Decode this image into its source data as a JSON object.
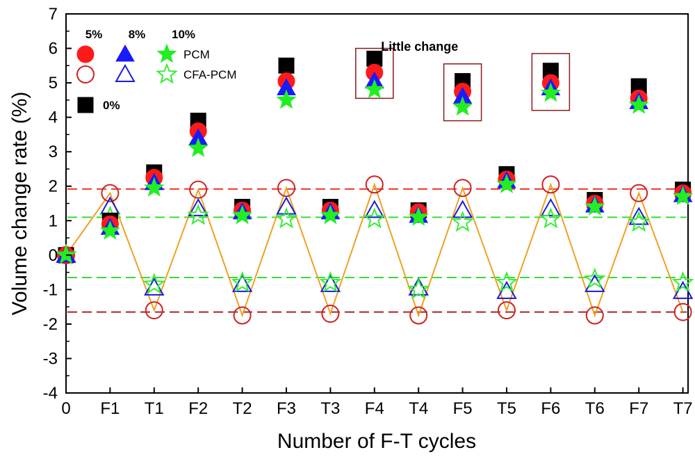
{
  "chart_data": {
    "type": "scatter",
    "title": "",
    "xlabel": "Number of F-T cycles",
    "ylabel": "Volume change rate (%)",
    "categories": [
      "0",
      "F1",
      "T1",
      "F2",
      "T2",
      "F3",
      "T3",
      "F4",
      "T4",
      "F5",
      "T5",
      "F6",
      "T6",
      "F7",
      "T7"
    ],
    "ylim": [
      -4,
      7
    ],
    "yticks": [
      -4,
      -3,
      -2,
      -1,
      0,
      1,
      2,
      3,
      4,
      5,
      6,
      7
    ],
    "grid": false,
    "series": [
      {
        "name": "0%",
        "group": "PCM",
        "marker": "square",
        "filled": true,
        "color": "#000000",
        "values": [
          0,
          1.0,
          2.4,
          3.9,
          1.4,
          5.5,
          1.4,
          5.7,
          1.3,
          5.05,
          2.35,
          5.35,
          1.6,
          4.9,
          1.9
        ]
      },
      {
        "name": "5%",
        "group": "PCM",
        "marker": "circle",
        "filled": true,
        "color": "#ff1a1a",
        "values": [
          0,
          0.9,
          2.25,
          3.6,
          1.3,
          5.05,
          1.3,
          5.3,
          1.25,
          4.75,
          2.2,
          5.0,
          1.5,
          4.55,
          1.8
        ]
      },
      {
        "name": "8%",
        "group": "PCM",
        "marker": "triangle",
        "filled": true,
        "color": "#1a1aff",
        "values": [
          0,
          0.8,
          2.1,
          3.4,
          1.25,
          4.85,
          1.25,
          5.05,
          1.15,
          4.6,
          2.15,
          4.85,
          1.45,
          4.45,
          1.75
        ]
      },
      {
        "name": "10%",
        "group": "PCM",
        "marker": "star",
        "filled": true,
        "color": "#22ee22",
        "values": [
          0,
          0.7,
          1.95,
          3.1,
          1.15,
          4.5,
          1.15,
          4.8,
          1.1,
          4.3,
          2.05,
          4.7,
          1.4,
          4.35,
          1.7
        ]
      },
      {
        "name": "5%",
        "group": "CFA-PCM",
        "marker": "circle",
        "filled": false,
        "color": "#cc2222",
        "values": [
          0,
          1.8,
          -1.6,
          1.9,
          -1.75,
          1.95,
          -1.7,
          2.05,
          -1.75,
          1.95,
          -1.6,
          2.05,
          -1.75,
          1.8,
          -1.65
        ]
      },
      {
        "name": "8%",
        "group": "CFA-PCM",
        "marker": "triangle",
        "filled": false,
        "color": "#1a1add",
        "values": [
          0,
          1.4,
          -0.95,
          1.35,
          -0.85,
          1.4,
          -0.85,
          1.3,
          -0.95,
          1.3,
          -1.05,
          1.35,
          -0.85,
          1.1,
          -1.05
        ]
      },
      {
        "name": "10%",
        "group": "CFA-PCM",
        "marker": "star",
        "filled": false,
        "color": "#33ee33",
        "values": [
          0,
          1.1,
          -0.85,
          1.15,
          -0.8,
          1.05,
          -0.8,
          1.05,
          -1.0,
          0.95,
          -0.8,
          1.05,
          -0.7,
          0.95,
          -0.8
        ]
      }
    ],
    "connector_line": {
      "series_index": 4,
      "color": "#f0a020"
    },
    "reference_lines": [
      {
        "y": 1.92,
        "color": "#ee3322"
      },
      {
        "y": 1.1,
        "color": "#33dd33"
      },
      {
        "y": -0.65,
        "color": "#33dd33"
      },
      {
        "y": -1.65,
        "color": "#aa2222"
      }
    ],
    "highlight_boxes": [
      {
        "category": "F4",
        "y_range": [
          4.55,
          6.0
        ]
      },
      {
        "category": "F5",
        "y_range": [
          3.9,
          5.55
        ]
      },
      {
        "category": "F6",
        "y_range": [
          4.2,
          5.85
        ]
      }
    ],
    "annotations": [
      {
        "text": "Little change",
        "x_category": "F4",
        "y": 6.05
      }
    ],
    "legend": {
      "placement": "top-left",
      "percent_labels": [
        "5%",
        "8%",
        "10%"
      ],
      "row_labels": [
        "PCM",
        "CFA-PCM"
      ],
      "zero_label": "0%"
    }
  }
}
